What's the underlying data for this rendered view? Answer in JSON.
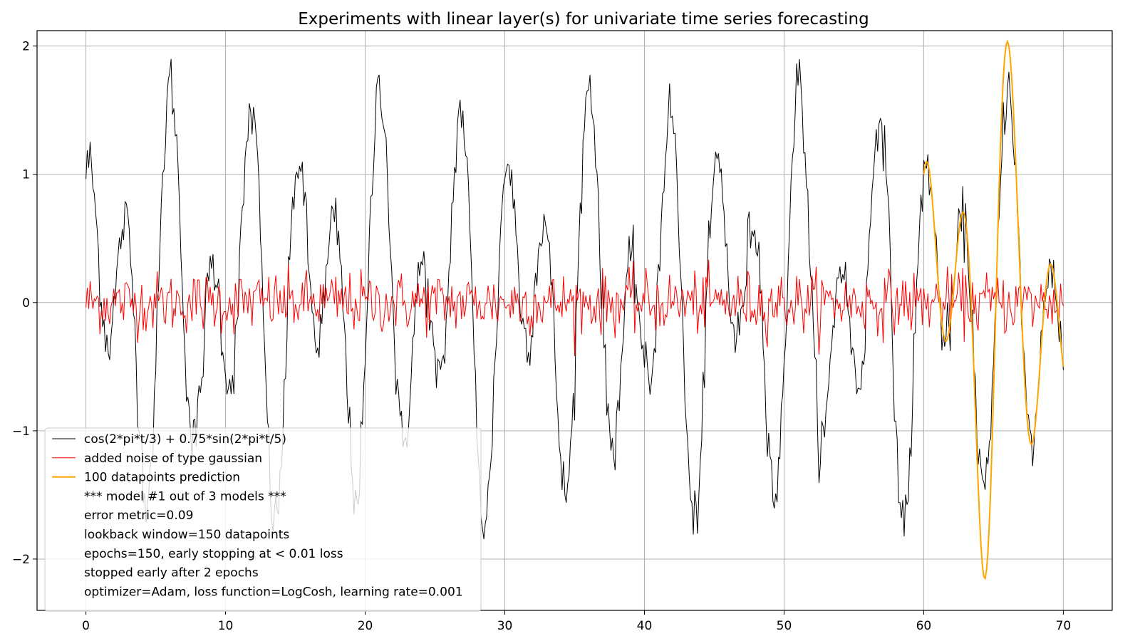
{
  "chart_data": {
    "type": "line",
    "title": "Experiments with linear layer(s) for univariate time series forecasting",
    "xlabel": "",
    "ylabel": "",
    "xlim": [
      -3.5,
      73.5
    ],
    "ylim": [
      -2.4,
      2.12
    ],
    "grid": true,
    "x_ticks": [
      0,
      10,
      20,
      30,
      40,
      50,
      60,
      70
    ],
    "y_ticks": [
      -2,
      -1,
      0,
      1,
      2
    ],
    "x_tick_labels": [
      "0",
      "10",
      "20",
      "30",
      "40",
      "50",
      "60",
      "70"
    ],
    "y_tick_labels": [
      "−2",
      "−1",
      "0",
      "1",
      "2"
    ],
    "legend_placement": "lower-left",
    "series": [
      {
        "name": "cos(2*pi*t/3) + 0.75*sin(2*pi*t/5)",
        "color": "#000000",
        "t_range": [
          0,
          70
        ],
        "samples": 700
      },
      {
        "name": "added noise of type gaussian",
        "color": "#ff0000",
        "t_range": [
          0,
          70
        ],
        "samples": 700,
        "std": 0.12
      },
      {
        "name": "100 datapoints prediction",
        "color": "#ffa500",
        "t_range": [
          60,
          70
        ],
        "samples": 100
      }
    ],
    "legend_extra_lines": [
      "*** model #1 out of 3 models ***",
      "error metric=0.09",
      "lookback window=150 datapoints",
      "epochs=150, early stopping at < 0.01 loss",
      "  stopped early after 2 epochs",
      "optimizer=Adam, loss function=LogCosh, learning rate=0.001"
    ]
  }
}
